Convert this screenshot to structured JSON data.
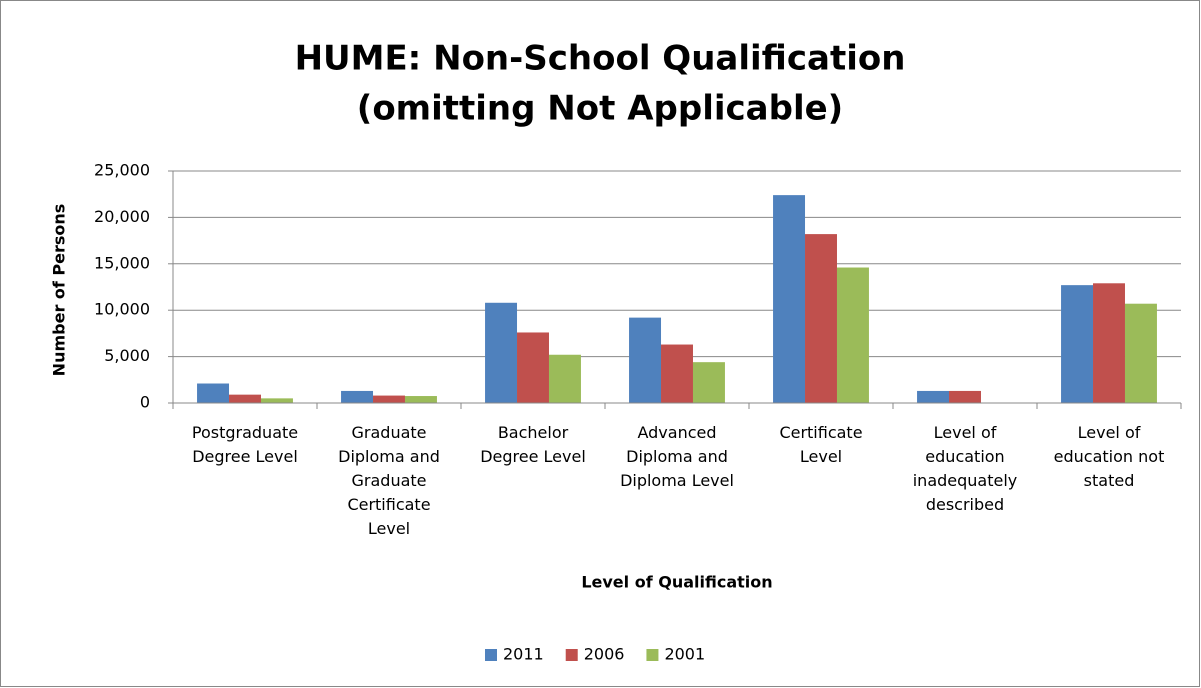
{
  "chart_data": {
    "type": "bar",
    "title": [
      "HUME: Non-School Qualification",
      "(omitting Not Applicable)"
    ],
    "y_label": "Number of Persons",
    "x_label": "Level of Qualification",
    "categories": [
      "Postgraduate Degree Level",
      "Graduate Diploma and Graduate Certificate Level",
      "Bachelor Degree Level",
      "Advanced Diploma and Diploma Level",
      "Certificate Level",
      "Level of education inadequately described",
      "Level of education not stated"
    ],
    "series": [
      {
        "name": "2011",
        "color": "#4f81bd",
        "values": [
          2100,
          1300,
          10800,
          9200,
          22400,
          1300,
          12700
        ]
      },
      {
        "name": "2006",
        "color": "#c0504d",
        "values": [
          900,
          800,
          7600,
          6300,
          18200,
          1300,
          12900
        ]
      },
      {
        "name": "2001",
        "color": "#9bbb59",
        "values": [
          500,
          750,
          5200,
          4400,
          14600,
          null,
          10700
        ]
      }
    ],
    "ylim": [
      0,
      25000
    ],
    "yticks": [
      0,
      {
        "value": 5000,
        "label": "5,000"
      },
      {
        "value": 10000,
        "label": "10,000"
      },
      {
        "value": 15000,
        "label": "15,000"
      },
      {
        "value": 20000,
        "label": "20,000"
      },
      {
        "value": 25000,
        "label": "25,000"
      }
    ],
    "grid": true,
    "legend": "bottom"
  }
}
